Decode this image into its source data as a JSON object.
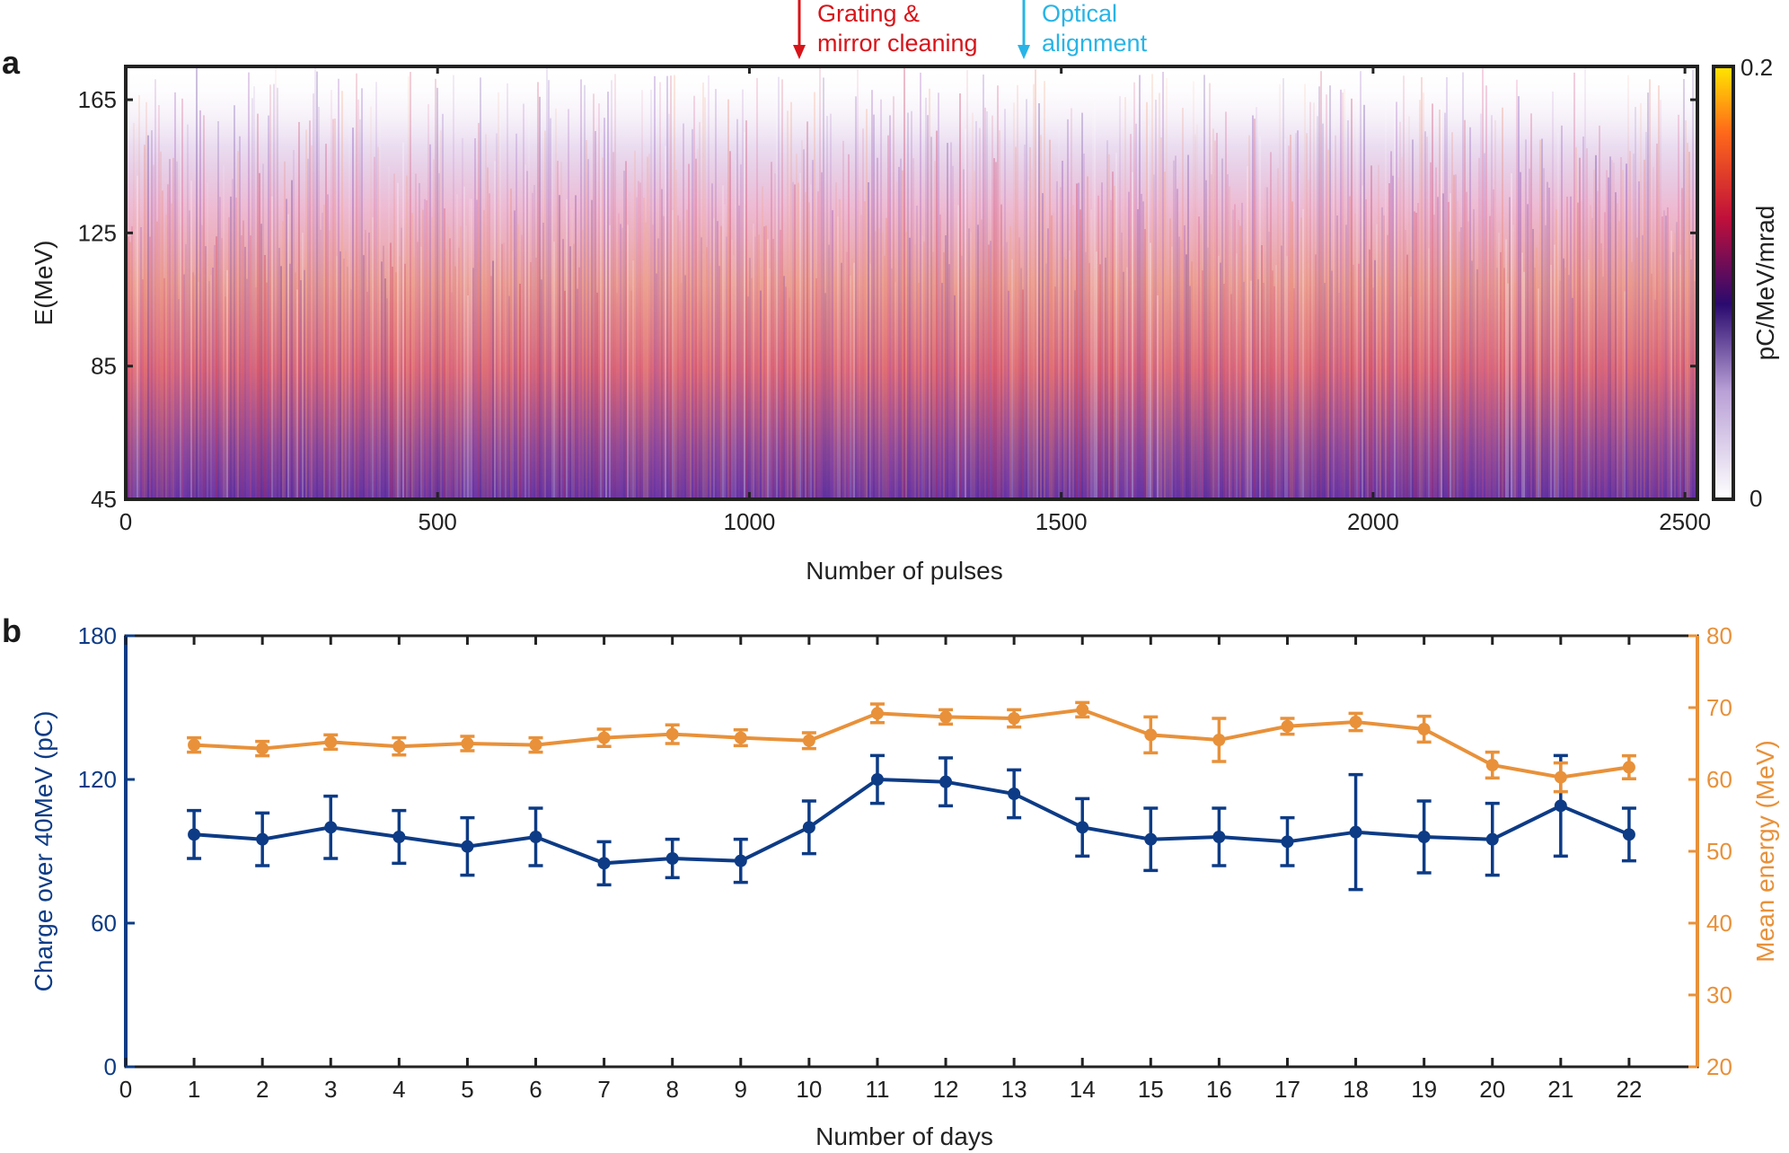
{
  "chart_data": [
    {
      "panel_label": "a",
      "type": "heatmap",
      "title": "",
      "xlabel": "Number of pulses",
      "ylabel": "E(MeV)",
      "xlim": [
        0,
        2520
      ],
      "ylim": [
        45,
        175
      ],
      "xticks": [
        0,
        500,
        1000,
        1500,
        2000,
        2500
      ],
      "yticks": [
        45,
        85,
        125,
        165
      ],
      "colorbar": {
        "label": "pC/MeV/mrad",
        "min": 0,
        "max": 0.2,
        "tick_labels": [
          "0",
          "0.2"
        ],
        "colormap": [
          "#ffffff",
          "#5b2a9e",
          "#2a0a6e",
          "#c0103a",
          "#ff6a1a",
          "#ffe600"
        ]
      },
      "annotations": [
        {
          "text_lines": [
            "Grating &",
            "mirror cleaning"
          ],
          "x": 1080,
          "color": "#d7141a"
        },
        {
          "text_lines": [
            "Optical",
            "alignment"
          ],
          "x": 1440,
          "color": "#28b4e6"
        }
      ]
    },
    {
      "panel_label": "b",
      "type": "line",
      "title": "",
      "xlabel": "Number of days",
      "xlim": [
        0,
        23
      ],
      "xticks": [
        0,
        1,
        2,
        3,
        4,
        5,
        6,
        7,
        8,
        9,
        10,
        11,
        12,
        13,
        14,
        15,
        16,
        17,
        18,
        19,
        20,
        21,
        22
      ],
      "x": [
        1,
        2,
        3,
        4,
        5,
        6,
        7,
        8,
        9,
        10,
        11,
        12,
        13,
        14,
        15,
        16,
        17,
        18,
        19,
        20,
        21,
        22
      ],
      "ylabel_left": "Charge over 40MeV (pC)",
      "ylim_left": [
        0,
        180
      ],
      "yticks_left": [
        0,
        60,
        120,
        180
      ],
      "ylabel_right": "Mean energy (MeV)",
      "ylim_right": [
        20,
        80
      ],
      "yticks_right": [
        20,
        30,
        40,
        50,
        60,
        70,
        80
      ],
      "series": [
        {
          "axis": "left",
          "color": "#0d3b85",
          "values": [
            97,
            95,
            100,
            96,
            92,
            96,
            85,
            87,
            86,
            100,
            120,
            119,
            114,
            100,
            95,
            96,
            94,
            98,
            96,
            95,
            109,
            97
          ],
          "errors": [
            10,
            11,
            13,
            11,
            12,
            12,
            9,
            8,
            9,
            11,
            10,
            10,
            10,
            12,
            13,
            12,
            10,
            24,
            15,
            15,
            21,
            11
          ]
        },
        {
          "axis": "right",
          "color": "#e8913a",
          "values": [
            64.8,
            64.3,
            65.2,
            64.6,
            65.0,
            64.8,
            65.8,
            66.3,
            65.8,
            65.4,
            69.2,
            68.7,
            68.5,
            69.7,
            66.2,
            65.5,
            67.4,
            68.0,
            67.0,
            62.0,
            60.3,
            61.7
          ],
          "errors": [
            1.0,
            1.0,
            1.0,
            1.2,
            1.0,
            1.0,
            1.2,
            1.3,
            1.1,
            1.1,
            1.3,
            1.0,
            1.2,
            1.0,
            2.5,
            3.0,
            1.1,
            1.2,
            1.8,
            1.8,
            2.0,
            1.6
          ]
        }
      ]
    }
  ]
}
